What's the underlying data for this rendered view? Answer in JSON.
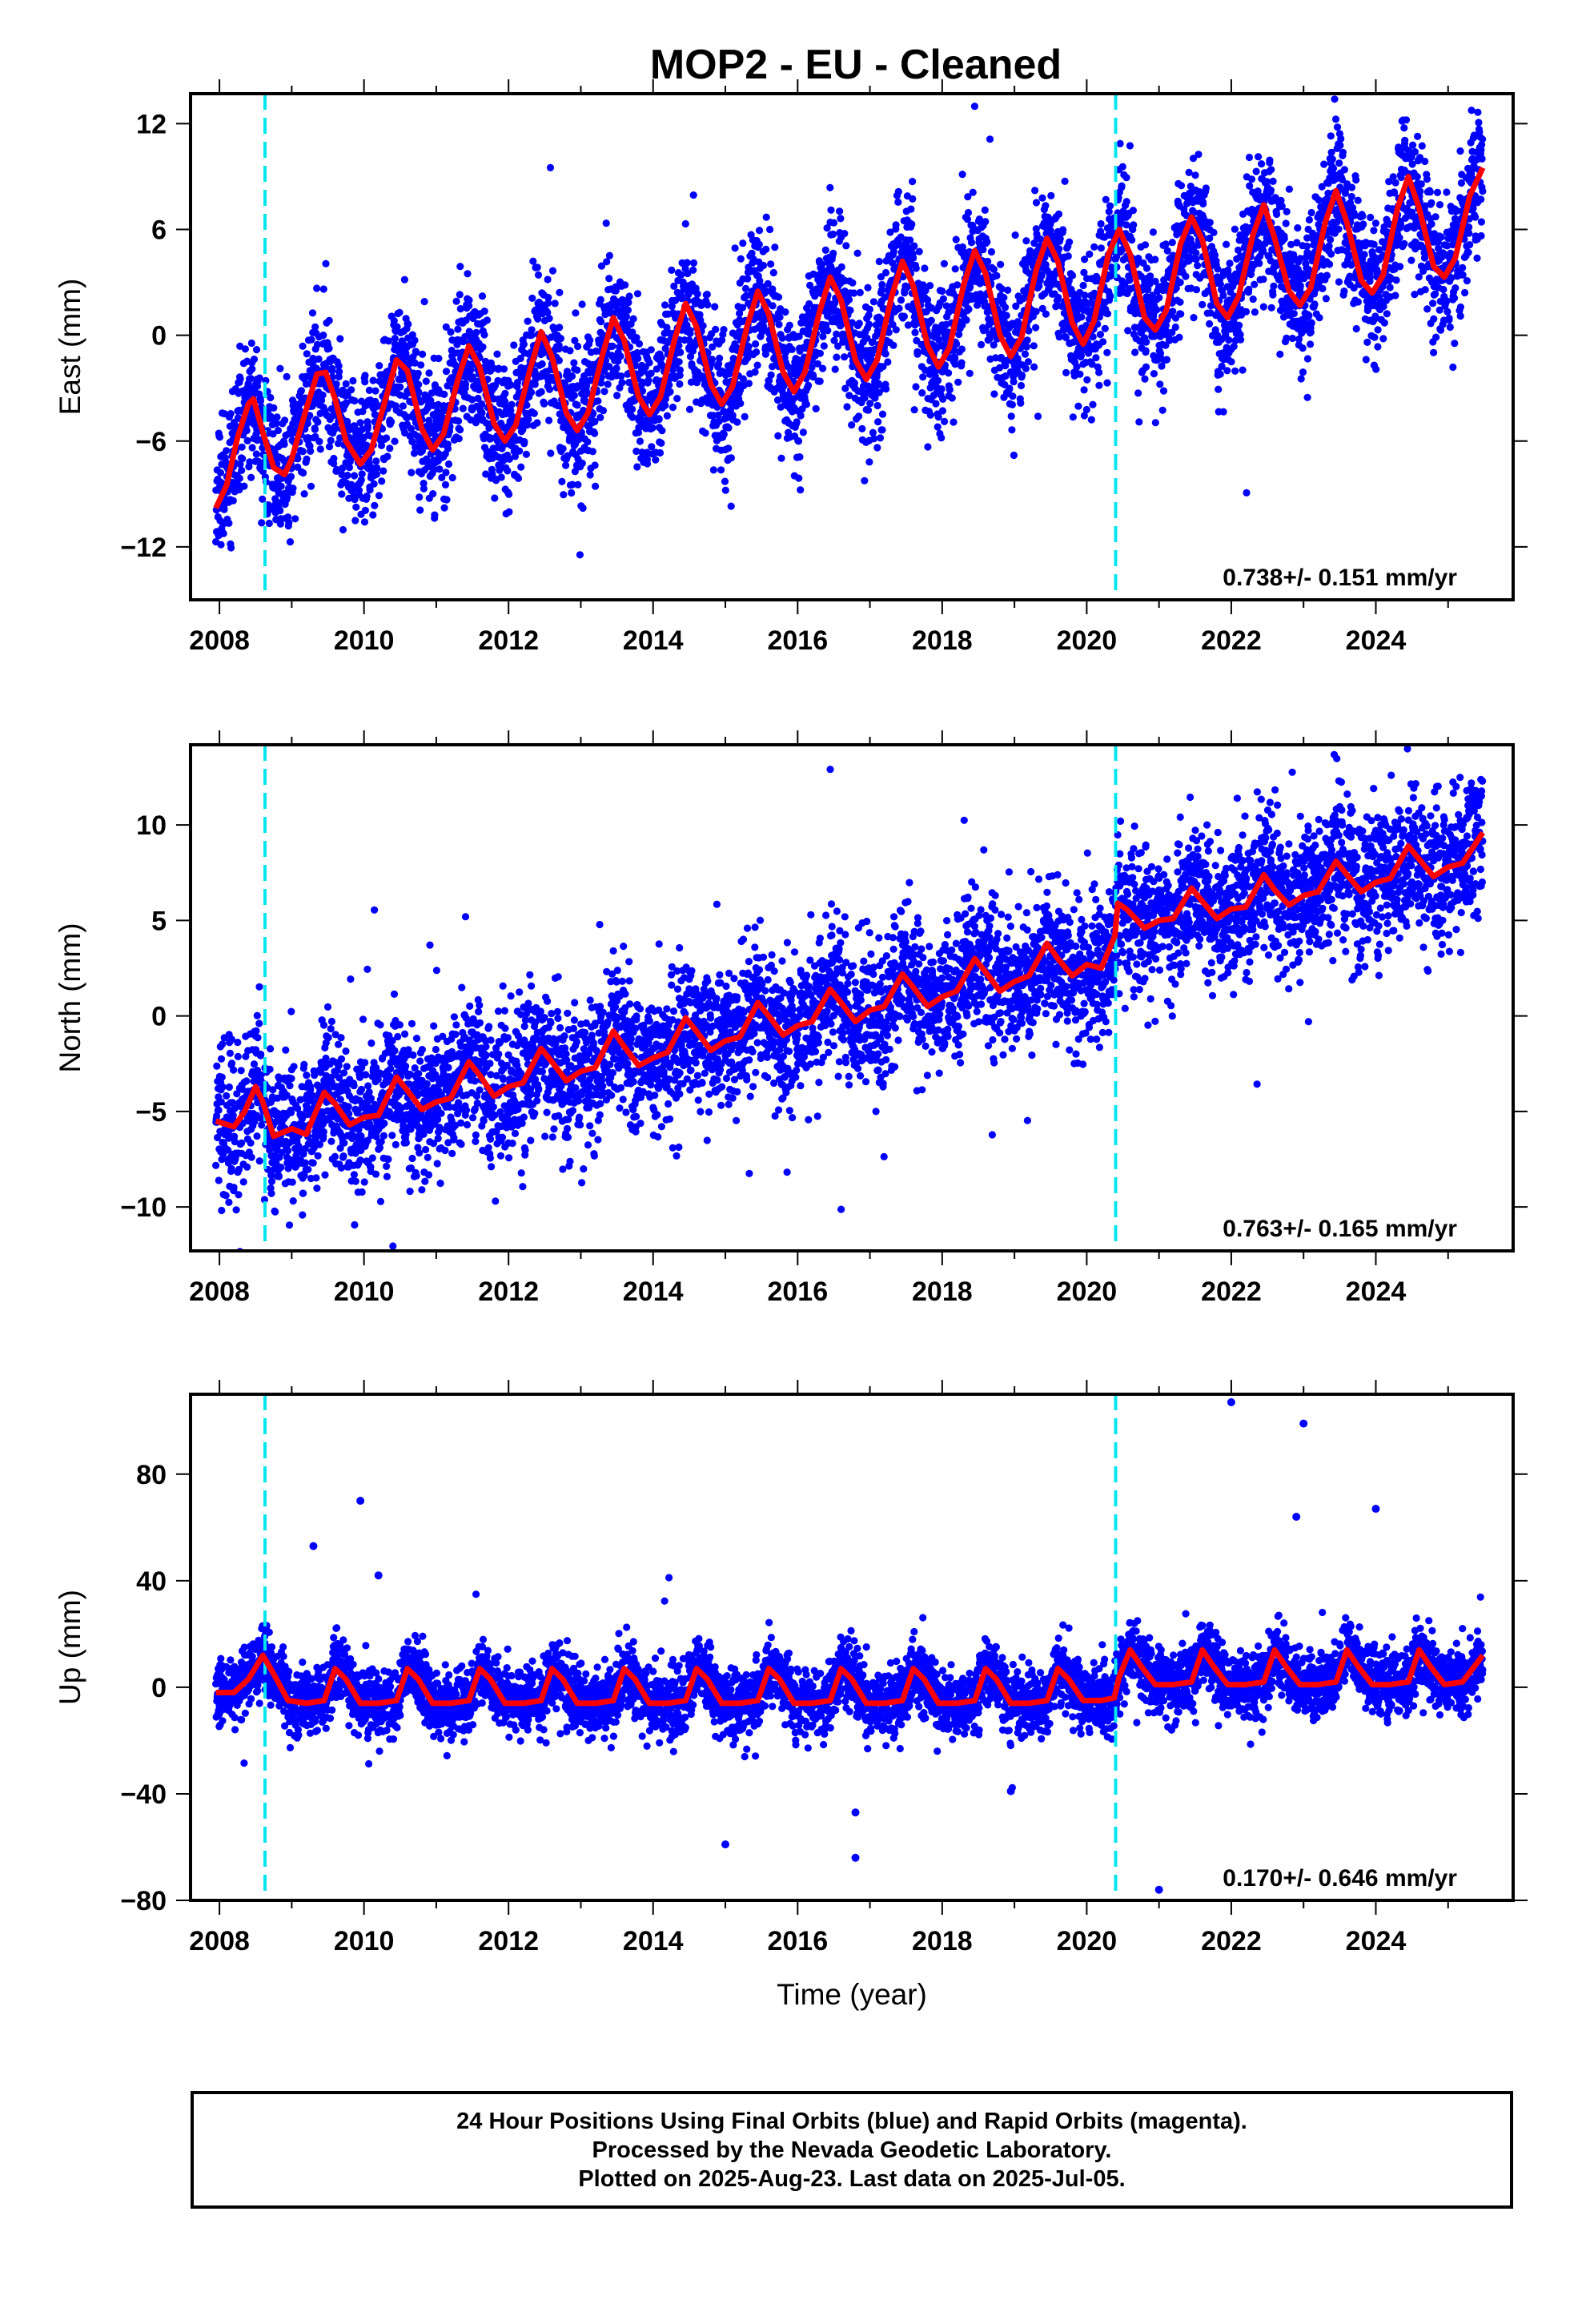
{
  "title": "MOP2  - EU - Cleaned",
  "caption": {
    "line1": "24 Hour Positions Using Final Orbits (blue) and Rapid Orbits (magenta).",
    "line2": "Processed by the Nevada Geodetic Laboratory.",
    "line3": "Plotted on 2025-Aug-23. Last data on 2025-Jul-05."
  },
  "colors": {
    "points": "#0000ff",
    "model": "#ff0000",
    "breaks": "#00e5ee"
  },
  "chart_data": [
    {
      "type": "scatter",
      "component": "east",
      "ylabel": "East (mm)",
      "xlabel": "",
      "xlim": [
        2007.6,
        2025.9
      ],
      "ylim": [
        -15,
        13.7
      ],
      "xticks": [
        2008,
        2010,
        2012,
        2014,
        2016,
        2018,
        2020,
        2022,
        2024
      ],
      "yticks": [
        -12,
        -6,
        0,
        6,
        12
      ],
      "rate_text": "0.738+/- 0.151 mm/yr",
      "breaks": [
        2008.63,
        2020.4
      ],
      "model": {
        "name": "",
        "x": [
          2007.95,
          2008.1,
          2008.25,
          2008.4,
          2008.47,
          2008.6,
          2008.75,
          2008.9,
          2009.0,
          2009.2,
          2009.35,
          2009.47,
          2009.6,
          2009.75,
          2009.95,
          2010.1,
          2010.3,
          2010.45,
          2010.6,
          2010.8,
          2010.95,
          2011.1,
          2011.3,
          2011.45,
          2011.6,
          2011.8,
          2011.95,
          2012.1,
          2012.3,
          2012.45,
          2012.6,
          2012.8,
          2012.95,
          2013.1,
          2013.3,
          2013.45,
          2013.6,
          2013.8,
          2013.95,
          2014.1,
          2014.3,
          2014.45,
          2014.6,
          2014.8,
          2014.95,
          2015.1,
          2015.3,
          2015.45,
          2015.6,
          2015.8,
          2015.95,
          2016.1,
          2016.3,
          2016.45,
          2016.6,
          2016.8,
          2016.95,
          2017.1,
          2017.3,
          2017.45,
          2017.6,
          2017.8,
          2017.95,
          2018.1,
          2018.3,
          2018.45,
          2018.6,
          2018.8,
          2018.95,
          2019.1,
          2019.3,
          2019.45,
          2019.6,
          2019.8,
          2019.95,
          2020.1,
          2020.3,
          2020.45,
          2020.6,
          2020.8,
          2020.95,
          2021.1,
          2021.3,
          2021.45,
          2021.6,
          2021.8,
          2021.95,
          2022.1,
          2022.3,
          2022.45,
          2022.6,
          2022.8,
          2022.95,
          2023.1,
          2023.3,
          2023.45,
          2023.6,
          2023.8,
          2023.95,
          2024.1,
          2024.3,
          2024.45,
          2024.6,
          2024.8,
          2024.95,
          2025.1,
          2025.3,
          2025.48
        ],
        "y": [
          -9.8,
          -8.5,
          -5.8,
          -3.9,
          -3.6,
          -5.5,
          -7.5,
          -7.9,
          -7.0,
          -4.2,
          -2.2,
          -2.1,
          -3.6,
          -6.0,
          -7.3,
          -6.5,
          -3.6,
          -1.4,
          -2.0,
          -5.3,
          -6.5,
          -5.6,
          -2.5,
          -0.6,
          -1.8,
          -5.0,
          -6.0,
          -5.1,
          -1.9,
          0.2,
          -1.2,
          -4.4,
          -5.4,
          -4.4,
          -1.1,
          1.0,
          -0.3,
          -3.5,
          -4.5,
          -3.5,
          -0.2,
          1.8,
          0.5,
          -2.8,
          -3.9,
          -2.9,
          0.5,
          2.5,
          1.2,
          -2.1,
          -3.2,
          -2.1,
          1.3,
          3.3,
          2.0,
          -1.4,
          -2.5,
          -1.4,
          2.2,
          4.2,
          2.8,
          -0.6,
          -1.8,
          -0.7,
          2.9,
          4.8,
          3.5,
          0.0,
          -1.2,
          -0.1,
          3.7,
          5.5,
          4.2,
          0.7,
          -0.5,
          0.8,
          4.6,
          6.0,
          4.6,
          1.0,
          0.3,
          1.4,
          5.2,
          6.7,
          5.4,
          1.8,
          1.0,
          2.2,
          5.7,
          7.4,
          5.5,
          2.5,
          1.7,
          2.7,
          6.4,
          8.2,
          6.4,
          3.1,
          2.4,
          3.4,
          7.2,
          9.0,
          7.2,
          3.9,
          3.3,
          4.4,
          7.9,
          9.5
        ]
      },
      "scatter_seed": 11,
      "scatter_spread": 2.0
    },
    {
      "type": "scatter",
      "component": "north",
      "ylabel": "North (mm)",
      "xlabel": "",
      "xlim": [
        2007.6,
        2025.9
      ],
      "ylim": [
        -12.3,
        14.2
      ],
      "xticks": [
        2008,
        2010,
        2012,
        2014,
        2016,
        2018,
        2020,
        2022,
        2024
      ],
      "yticks": [
        -10,
        -5,
        0,
        5,
        10
      ],
      "rate_text": "0.763+/- 0.165 mm/yr",
      "breaks": [
        2008.63,
        2020.4
      ],
      "model": {
        "name": "",
        "x": [
          2007.95,
          2008.2,
          2008.35,
          2008.5,
          2008.6,
          2008.75,
          2009.0,
          2009.2,
          2009.45,
          2009.6,
          2009.8,
          2010.0,
          2010.2,
          2010.45,
          2010.6,
          2010.8,
          2011.0,
          2011.2,
          2011.45,
          2011.6,
          2011.8,
          2012.0,
          2012.2,
          2012.45,
          2012.6,
          2012.8,
          2013.0,
          2013.2,
          2013.45,
          2013.6,
          2013.8,
          2014.0,
          2014.2,
          2014.45,
          2014.6,
          2014.8,
          2015.0,
          2015.2,
          2015.45,
          2015.6,
          2015.8,
          2016.0,
          2016.2,
          2016.45,
          2016.6,
          2016.8,
          2017.0,
          2017.2,
          2017.45,
          2017.6,
          2017.8,
          2018.0,
          2018.2,
          2018.45,
          2018.6,
          2018.8,
          2019.0,
          2019.2,
          2019.45,
          2019.6,
          2019.8,
          2020.0,
          2020.2,
          2020.39,
          2020.43,
          2020.55,
          2020.8,
          2021.0,
          2021.2,
          2021.45,
          2021.6,
          2021.8,
          2022.0,
          2022.2,
          2022.45,
          2022.6,
          2022.8,
          2023.0,
          2023.2,
          2023.45,
          2023.6,
          2023.8,
          2024.0,
          2024.2,
          2024.45,
          2024.6,
          2024.8,
          2025.0,
          2025.2,
          2025.48
        ],
        "y": [
          -5.5,
          -5.8,
          -5.0,
          -3.7,
          -4.5,
          -6.3,
          -5.9,
          -6.2,
          -4.0,
          -4.6,
          -5.7,
          -5.3,
          -5.2,
          -3.2,
          -3.9,
          -4.9,
          -4.5,
          -4.3,
          -2.4,
          -3.1,
          -4.2,
          -3.7,
          -3.5,
          -1.7,
          -2.4,
          -3.4,
          -2.9,
          -2.7,
          -0.8,
          -1.6,
          -2.6,
          -2.2,
          -1.9,
          -0.1,
          -0.8,
          -1.8,
          -1.3,
          -1.1,
          0.7,
          0.0,
          -1.0,
          -0.5,
          -0.3,
          1.4,
          0.7,
          -0.3,
          0.3,
          0.5,
          2.2,
          1.5,
          0.5,
          1.0,
          1.3,
          3.0,
          2.3,
          1.3,
          1.8,
          2.1,
          3.8,
          3.0,
          2.1,
          2.7,
          2.5,
          4.2,
          5.9,
          5.6,
          4.6,
          5.0,
          5.1,
          6.7,
          6.0,
          5.1,
          5.6,
          5.7,
          7.4,
          6.6,
          5.8,
          6.3,
          6.5,
          8.1,
          7.4,
          6.5,
          7.0,
          7.2,
          8.9,
          8.2,
          7.3,
          7.8,
          8.0,
          9.6
        ]
      },
      "scatter_seed": 23,
      "scatter_spread": 1.8
    },
    {
      "type": "scatter",
      "component": "up",
      "ylabel": "Up (mm)",
      "xlabel": "Time (year)",
      "xlim": [
        2007.6,
        2025.9
      ],
      "ylim": [
        -80,
        110
      ],
      "xticks": [
        2008,
        2010,
        2012,
        2014,
        2016,
        2018,
        2020,
        2022,
        2024
      ],
      "yticks": [
        -80,
        -40,
        0,
        40,
        80
      ],
      "rate_text": "0.170+/- 0.646 mm/yr",
      "breaks": [
        2008.63,
        2020.4
      ],
      "model": {
        "name": "",
        "x": [
          2007.95,
          2008.2,
          2008.4,
          2008.6,
          2008.75,
          2008.95,
          2009.2,
          2009.45,
          2009.6,
          2009.75,
          2009.95,
          2010.2,
          2010.45,
          2010.6,
          2010.75,
          2010.95,
          2011.2,
          2011.45,
          2011.6,
          2011.75,
          2011.95,
          2012.2,
          2012.45,
          2012.6,
          2012.75,
          2012.95,
          2013.2,
          2013.45,
          2013.6,
          2013.75,
          2013.95,
          2014.2,
          2014.45,
          2014.6,
          2014.75,
          2014.95,
          2015.2,
          2015.45,
          2015.6,
          2015.75,
          2015.95,
          2016.2,
          2016.45,
          2016.6,
          2016.75,
          2016.95,
          2017.2,
          2017.45,
          2017.6,
          2017.75,
          2017.95,
          2018.2,
          2018.45,
          2018.6,
          2018.75,
          2018.95,
          2019.2,
          2019.45,
          2019.6,
          2019.75,
          2019.95,
          2020.2,
          2020.38,
          2020.45,
          2020.6,
          2020.75,
          2020.95,
          2021.2,
          2021.45,
          2021.6,
          2021.75,
          2021.95,
          2022.2,
          2022.45,
          2022.6,
          2022.75,
          2022.95,
          2023.2,
          2023.45,
          2023.6,
          2023.75,
          2023.95,
          2024.2,
          2024.45,
          2024.6,
          2024.75,
          2024.95,
          2025.2,
          2025.48
        ],
        "y": [
          -2,
          -2,
          3,
          12,
          5,
          -5,
          -6,
          -5,
          7,
          3,
          -6,
          -6,
          -5,
          7,
          3,
          -6,
          -6,
          -5,
          7,
          3,
          -6,
          -6,
          -5,
          7,
          3,
          -6,
          -6,
          -5,
          7,
          3,
          -6,
          -6,
          -5,
          7,
          3,
          -6,
          -6,
          -5,
          7,
          3,
          -6,
          -6,
          -5,
          7,
          3,
          -6,
          -6,
          -5,
          7,
          3,
          -6,
          -6,
          -5,
          7,
          3,
          -6,
          -6,
          -5,
          7,
          3,
          -5,
          -5,
          -4,
          4,
          14,
          8,
          1,
          1,
          2,
          14,
          8,
          1,
          1,
          2,
          14,
          8,
          1,
          1,
          2,
          14,
          8,
          1,
          1,
          2,
          14,
          8,
          1,
          2,
          12
        ]
      },
      "scatter_seed": 37,
      "scatter_spread": 6.0,
      "outliers": [
        [
          2009.95,
          70
        ],
        [
          2010.2,
          42
        ],
        [
          2009.3,
          53
        ],
        [
          2022.0,
          107
        ],
        [
          2023.0,
          99
        ],
        [
          2022.9,
          64
        ],
        [
          2024.0,
          67
        ],
        [
          2016.8,
          -64
        ],
        [
          2016.8,
          -47
        ],
        [
          2015.0,
          -59
        ],
        [
          2018.95,
          -39
        ],
        [
          2021.0,
          -76
        ]
      ]
    }
  ]
}
